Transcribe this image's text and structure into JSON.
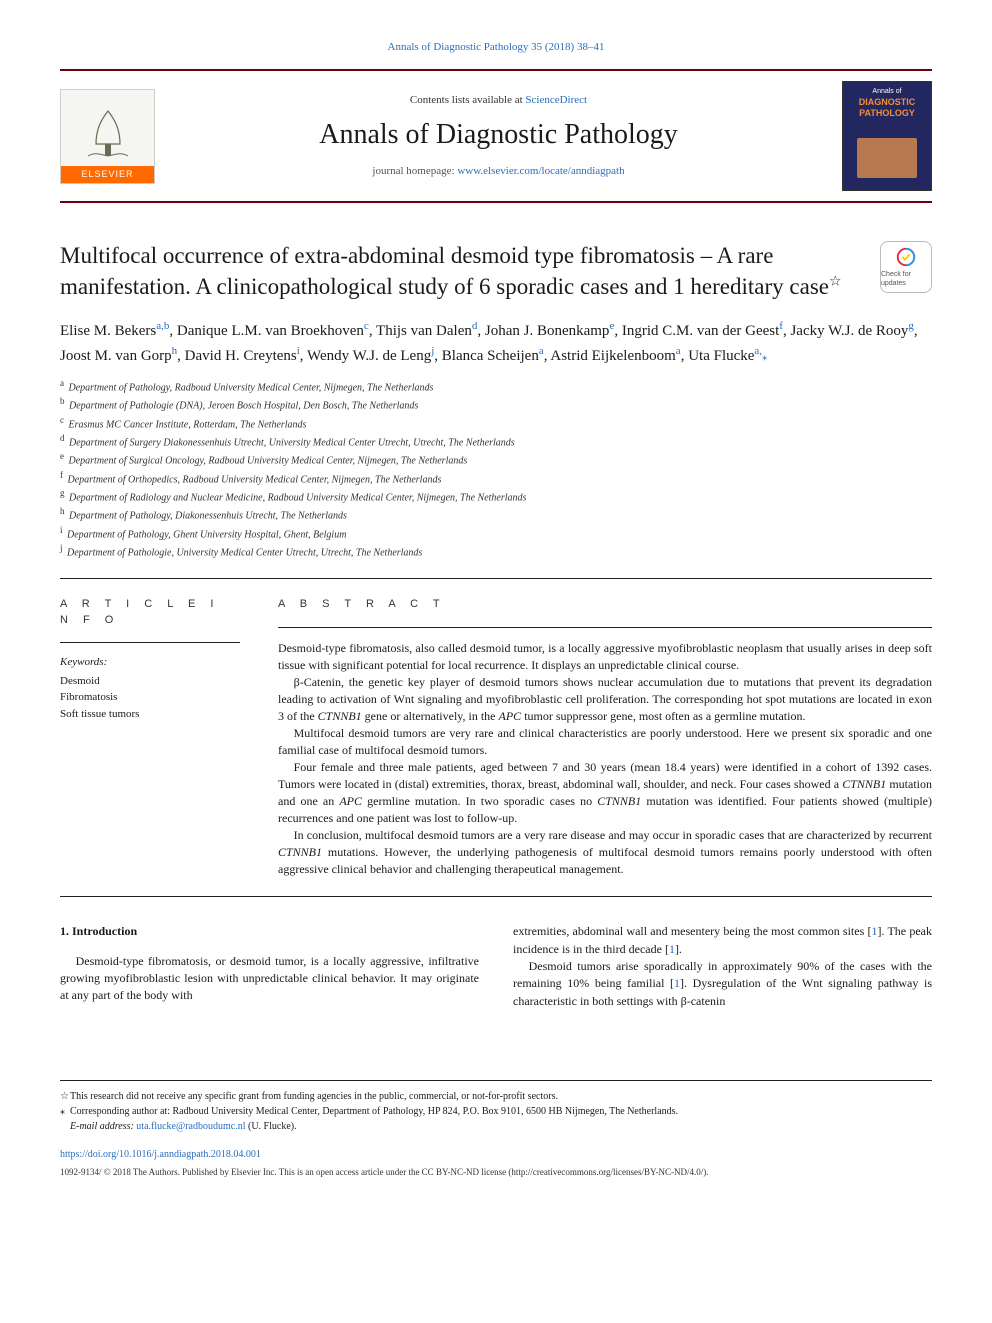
{
  "top_link": "Annals of Diagnostic Pathology 35 (2018) 38–41",
  "mast": {
    "contents_prefix": "Contents lists available at ",
    "contents_link": "ScienceDirect",
    "journal_name": "Annals of Diagnostic Pathology",
    "homepage_prefix": "journal homepage: ",
    "homepage_link": "www.elsevier.com/locate/anndiagpath",
    "elsevier_label": "ELSEVIER",
    "cover_line1": "Annals of",
    "cover_line2": "DIAGNOSTIC",
    "cover_line3": "PATHOLOGY"
  },
  "article": {
    "title": "Multifocal occurrence of extra-abdominal desmoid type fibromatosis – A rare manifestation. A clinicopathological study of 6 sporadic cases and 1 hereditary case",
    "title_star": "☆",
    "crossmark_text": "Check for updates"
  },
  "authors_html": "Elise M. Bekers<sup>a,b</sup>, Danique L.M. van Broekhoven<sup>c</sup>, Thijs van Dalen<sup>d</sup>, Johan J. Bonenkamp<sup>e</sup>, Ingrid C.M. van der Geest<sup>f</sup>, Jacky W.J. de Rooy<sup>g</sup>, Joost M. van Gorp<sup>h</sup>, David H. Creytens<sup>i</sup>, Wendy W.J. de Leng<sup>j</sup>, Blanca Scheijen<sup>a</sup>, Astrid Eijkelenboom<sup>a</sup>, Uta Flucke<sup>a,</sup><span class=\"corr-star\">⁎</span>",
  "affiliations": [
    {
      "k": "a",
      "t": "Department of Pathology, Radboud University Medical Center, Nijmegen, The Netherlands"
    },
    {
      "k": "b",
      "t": "Department of Pathologie (DNA), Jeroen Bosch Hospital, Den Bosch, The Netherlands"
    },
    {
      "k": "c",
      "t": "Erasmus MC Cancer Institute, Rotterdam, The Netherlands"
    },
    {
      "k": "d",
      "t": "Department of Surgery Diakonessenhuis Utrecht, University Medical Center Utrecht, Utrecht, The Netherlands"
    },
    {
      "k": "e",
      "t": "Department of Surgical Oncology, Radboud University Medical Center, Nijmegen, The Netherlands"
    },
    {
      "k": "f",
      "t": "Department of Orthopedics, Radboud University Medical Center, Nijmegen, The Netherlands"
    },
    {
      "k": "g",
      "t": "Department of Radiology and Nuclear Medicine, Radboud University Medical Center, Nijmegen, The Netherlands"
    },
    {
      "k": "h",
      "t": "Department of Pathology, Diakonessenhuis Utrecht, The Netherlands"
    },
    {
      "k": "i",
      "t": "Department of Pathology, Ghent University Hospital, Ghent, Belgium"
    },
    {
      "k": "j",
      "t": "Department of Pathologie, University Medical Center Utrecht, Utrecht, The Netherlands"
    }
  ],
  "article_info": {
    "heading": "A R T I C L E  I N F O",
    "kw_label": "Keywords:",
    "keywords": [
      "Desmoid",
      "Fibromatosis",
      "Soft tissue tumors"
    ]
  },
  "abstract": {
    "heading": "A B S T R A C T",
    "paragraphs": [
      "Desmoid-type fibromatosis, also called desmoid tumor, is a locally aggressive myofibroblastic neoplasm that usually arises in deep soft tissue with significant potential for local recurrence. It displays an unpredictable clinical course.",
      "β-Catenin, the genetic key player of desmoid tumors shows nuclear accumulation due to mutations that prevent its degradation leading to activation of Wnt signaling and myofibroblastic cell proliferation. The corresponding hot spot mutations are located in exon 3 of the <em>CTNNB1</em> gene or alternatively, in the <em>APC</em> tumor suppressor gene, most often as a germline mutation.",
      "Multifocal desmoid tumors are very rare and clinical characteristics are poorly understood. Here we present six sporadic and one familial case of multifocal desmoid tumors.",
      "Four female and three male patients, aged between 7 and 30 years (mean 18.4 years) were identified in a cohort of 1392 cases. Tumors were located in (distal) extremities, thorax, breast, abdominal wall, shoulder, and neck. Four cases showed a <em>CTNNB1</em> mutation and one an <em>APC</em> germline mutation. In two sporadic cases no <em>CTNNB1</em> mutation was identified. Four patients showed (multiple) recurrences and one patient was lost to follow-up.",
      "In conclusion, multifocal desmoid tumors are a very rare disease and may occur in sporadic cases that are characterized by recurrent <em>CTNNB1</em> mutations. However, the underlying pathogenesis of multifocal desmoid tumors remains poorly understood with often aggressive clinical behavior and challenging therapeutical management."
    ]
  },
  "body": {
    "section_heading": "1. Introduction",
    "left_p": "Desmoid-type fibromatosis, or desmoid tumor, is a locally aggressive, infiltrative growing myofibroblastic lesion with unpredictable clinical behavior. It may originate at any part of the body with",
    "right_p1": "extremities, abdominal wall and mesentery being the most common sites [<span class=\"ref-link\">1</span>]. The peak incidence is in the third decade [<span class=\"ref-link\">1</span>].",
    "right_p2": "Desmoid tumors arise sporadically in approximately 90% of the cases with the remaining 10% being familial [<span class=\"ref-link\">1</span>]. Dysregulation of the Wnt signaling pathway is characteristic in both settings with β-catenin"
  },
  "footnotes": {
    "f1": "This research did not receive any specific grant from funding agencies in the public, commercial, or not-for-profit sectors.",
    "f2": "Corresponding author at: Radboud University Medical Center, Department of Pathology, HP 824, P.O. Box 9101, 6500 HB Nijmegen, The Netherlands.",
    "email_label": "E-mail address: ",
    "email": "uta.flucke@radboudumc.nl",
    "email_suffix": " (U. Flucke)."
  },
  "doi": "https://doi.org/10.1016/j.anndiagpath.2018.04.001",
  "copyright": "1092-9134/ © 2018 The Authors. Published by Elsevier Inc. This is an open access article under the CC BY-NC-ND license (http://creativecommons.org/licenses/BY-NC-ND/4.0/).",
  "colors": {
    "rule": "#6b0012",
    "link": "#2a6ebb",
    "elsevier_orange": "#ff6a00",
    "cover_bg": "#22285f",
    "cover_accent": "#ef8e3b"
  }
}
